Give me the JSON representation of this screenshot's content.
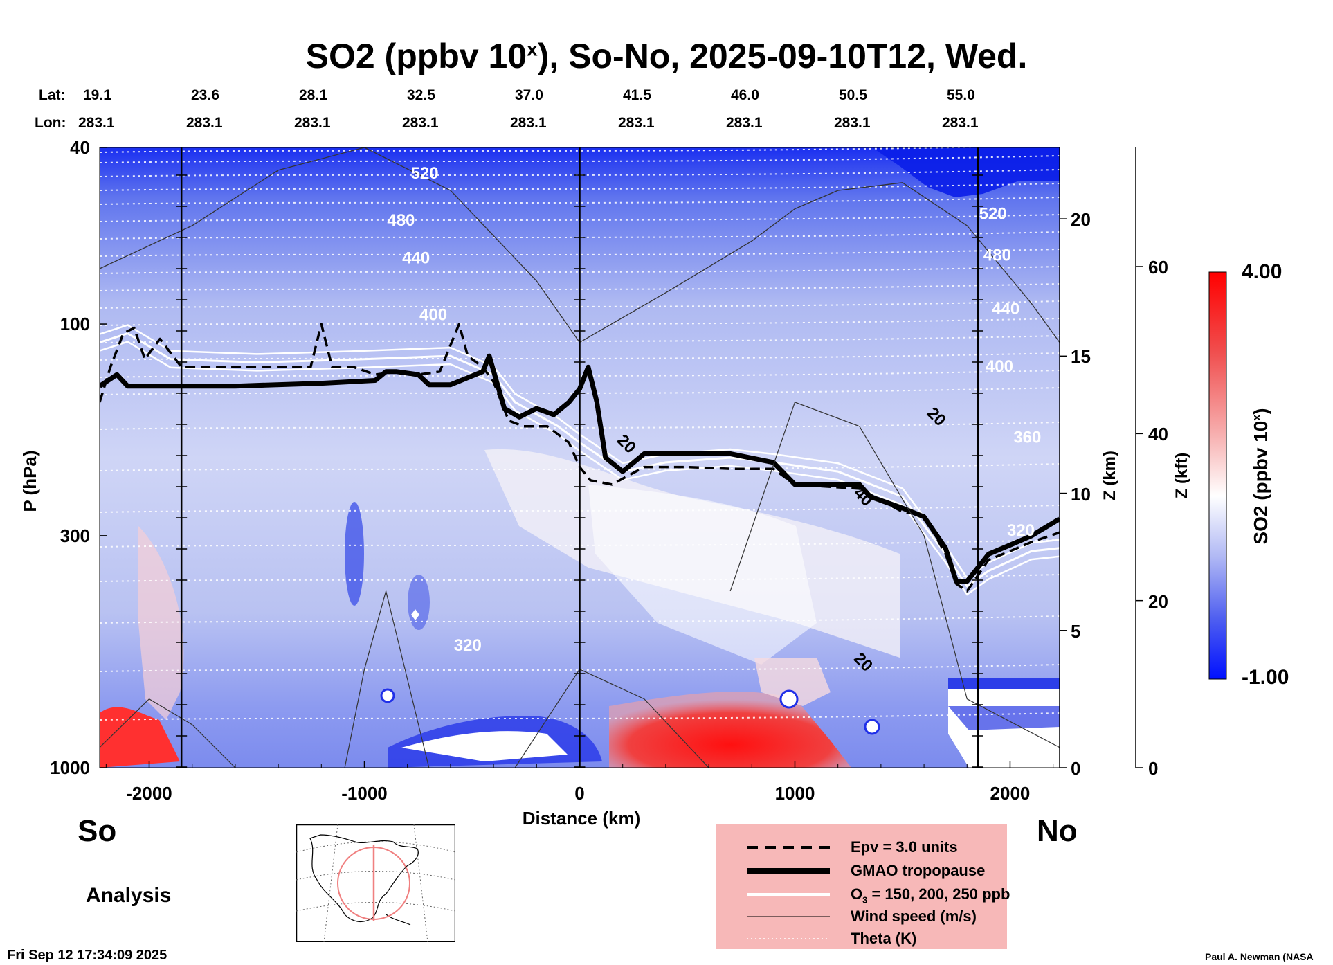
{
  "title": {
    "main": "SO2 (ppbv 10",
    "sup": "x",
    "rest": "), So-No, 2025-09-10T12, Wed."
  },
  "header_rows": {
    "lat_label": "Lat:",
    "lon_label": "Lon:",
    "lat": [
      "19.1",
      "23.6",
      "28.1",
      "32.5",
      "37.0",
      "41.5",
      "46.0",
      "50.5",
      "55.0"
    ],
    "lon": [
      "283.1",
      "283.1",
      "283.1",
      "283.1",
      "283.1",
      "283.1",
      "283.1",
      "283.1",
      "283.1"
    ]
  },
  "chart_data": {
    "type": "heatmap",
    "title": "SO2 (ppbv 10^x), So-No, 2025-09-10T12, Wed.",
    "xlabel": "Distance (km)",
    "ylabel": "P (hPa)",
    "xlim": [
      -2230,
      2230
    ],
    "ylim": [
      1000,
      40
    ],
    "y_scale": "log",
    "x_ticks": [
      -2000,
      -1000,
      0,
      1000,
      2000
    ],
    "x_tick_labels": [
      "-2000",
      "-1000",
      "0",
      "1000",
      "2000"
    ],
    "y_ticks": [
      40,
      100,
      300,
      1000
    ],
    "y_tick_labels": [
      "40",
      "100",
      "300",
      "1000"
    ],
    "z_km_label": "Z (km)",
    "z_km_ticks": [
      0,
      5,
      10,
      15,
      20
    ],
    "z_kft_label": "Z (kft)",
    "z_kft_ticks": [
      0,
      20,
      40,
      60
    ],
    "colorbar": {
      "label": "SO2 (ppbv 10^x)",
      "min": -1.0,
      "max": 4.0,
      "min_label": "-1.00",
      "max_label": "4.00"
    },
    "side_labels": {
      "south": "So",
      "north": "No"
    },
    "vertical_lines_x": [
      -1850,
      0,
      1850
    ],
    "theta_labels": [
      {
        "value": "520",
        "x": -720,
        "p": 47
      },
      {
        "value": "480",
        "x": -830,
        "p": 60
      },
      {
        "value": "440",
        "x": -760,
        "p": 73
      },
      {
        "value": "400",
        "x": -680,
        "p": 98
      },
      {
        "value": "320",
        "x": -520,
        "p": 545
      },
      {
        "value": "520",
        "x": 1920,
        "p": 58
      },
      {
        "value": "480",
        "x": 1940,
        "p": 72
      },
      {
        "value": "440",
        "x": 1980,
        "p": 95
      },
      {
        "value": "400",
        "x": 1950,
        "p": 128
      },
      {
        "value": "360",
        "x": 2080,
        "p": 185
      },
      {
        "value": "320",
        "x": 2050,
        "p": 300
      }
    ],
    "wind_labels": [
      {
        "value": "20",
        "x": 1640,
        "p": 165
      },
      {
        "value": "40",
        "x": 1300,
        "p": 250
      },
      {
        "value": "20",
        "x": 1300,
        "p": 590
      },
      {
        "value": "20",
        "x": 200,
        "p": 190
      }
    ],
    "series": [
      {
        "name": "GMAO tropopause",
        "x": [
          -2230,
          -2150,
          -2100,
          -2050,
          -1900,
          -1600,
          -1200,
          -950,
          -900,
          -850,
          -750,
          -700,
          -600,
          -450,
          -420,
          -350,
          -280,
          -200,
          -120,
          -50,
          0,
          40,
          80,
          120,
          200,
          300,
          500,
          700,
          900,
          1000,
          1300,
          1350,
          1500,
          1600,
          1700,
          1750,
          1800,
          1900,
          2000,
          2100,
          2230
        ],
        "y": [
          138,
          130,
          138,
          138,
          138,
          138,
          136,
          134,
          128,
          128,
          130,
          137,
          137,
          128,
          118,
          155,
          162,
          155,
          160,
          150,
          140,
          125,
          150,
          200,
          215,
          196,
          196,
          196,
          205,
          230,
          230,
          245,
          260,
          272,
          320,
          380,
          380,
          330,
          315,
          300,
          275
        ]
      },
      {
        "name": "Epv = 3.0 units",
        "x": [
          -2230,
          -2180,
          -2120,
          -2070,
          -2020,
          -1950,
          -1850,
          -1500,
          -1250,
          -1200,
          -1150,
          -1050,
          -950,
          -850,
          -750,
          -650,
          -560,
          -520,
          -450,
          -400,
          -330,
          -260,
          -150,
          -50,
          0,
          50,
          150,
          300,
          500,
          700,
          900,
          1000,
          1300,
          1400,
          1500,
          1600,
          1700,
          1750,
          1800,
          1900,
          2000,
          2100,
          2230
        ],
        "y": [
          150,
          125,
          105,
          102,
          120,
          108,
          125,
          125,
          125,
          100,
          125,
          125,
          130,
          128,
          130,
          128,
          100,
          118,
          125,
          135,
          165,
          170,
          170,
          185,
          210,
          225,
          230,
          210,
          210,
          212,
          212,
          230,
          235,
          250,
          265,
          270,
          330,
          385,
          400,
          340,
          325,
          310,
          295
        ]
      },
      {
        "name": "O3 = 150, 200, 250 ppb",
        "x": [
          -2230,
          -2100,
          -1900,
          -1500,
          -1000,
          -600,
          -400,
          -300,
          -100,
          0,
          200,
          400,
          700,
          900,
          1200,
          1500,
          1700,
          1800,
          1900,
          2100,
          2230
        ],
        "y": [
          110,
          105,
          120,
          122,
          120,
          118,
          130,
          150,
          170,
          185,
          215,
          205,
          200,
          205,
          215,
          245,
          330,
          390,
          360,
          325,
          320
        ]
      },
      {
        "name": "Wind speed (m/s)",
        "x": [
          -2230,
          -1800,
          -1400,
          -1000,
          -600,
          -200,
          0,
          400,
          800,
          1000,
          1200,
          1500,
          1800,
          2100,
          2230
        ],
        "y": [
          75,
          60,
          45,
          40,
          50,
          80,
          110,
          85,
          65,
          55,
          50,
          48,
          60,
          90,
          110
        ]
      }
    ],
    "legend_position": "bottom-center"
  },
  "legend": {
    "items": [
      {
        "label": "Epv = 3.0 units",
        "style": "dashed"
      },
      {
        "label": "GMAO tropopause",
        "style": "thick"
      },
      {
        "label_a": "O",
        "label_sub": "3",
        "label_b": " = 150, 200, 250 ppb",
        "style": "white"
      },
      {
        "label": "Wind speed (m/s)",
        "style": "thin"
      },
      {
        "label": "Theta (K)",
        "style": "dotted"
      }
    ],
    "bg": "#f7b8b8"
  },
  "labels": {
    "analysis": "Analysis",
    "timestamp": "Fri Sep 12 17:34:09 2025",
    "credit": "Paul A. Newman (NASA"
  },
  "colors": {
    "low": "#0000ff",
    "mid": "#ffffff",
    "high": "#ff0000"
  }
}
